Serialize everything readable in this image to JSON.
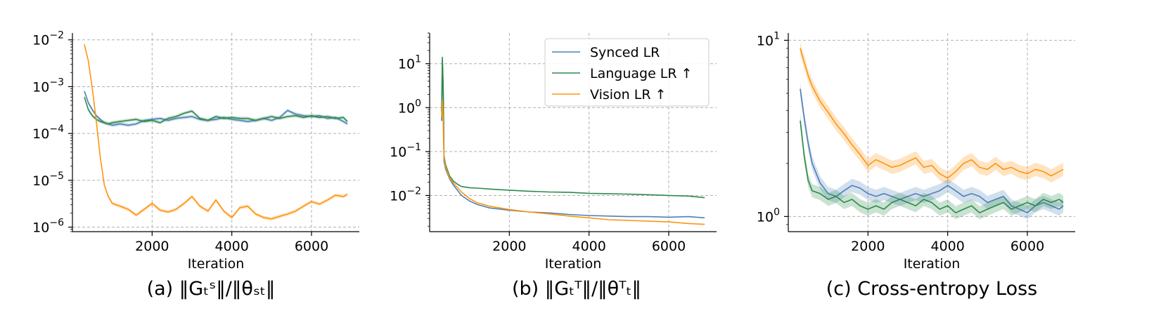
{
  "chart_data": [
    {
      "type": "line",
      "caption": "(a) ‖Gₜˢ‖/‖θₛₜ‖",
      "xlabel": "Iteration",
      "ylabel": "",
      "yscale": "log",
      "xlim": [
        0,
        7200
      ],
      "ylim": [
        8e-07,
        0.014
      ],
      "xticks": [
        2000,
        4000,
        6000
      ],
      "xtick_labels": [
        "2000",
        "4000",
        "6000"
      ],
      "yticks": [
        1e-06,
        1e-05,
        0.0001,
        0.001,
        0.01
      ],
      "ytick_labels": [
        {
          "base": "10",
          "exp": "−6"
        },
        {
          "base": "10",
          "exp": "−5"
        },
        {
          "base": "10",
          "exp": "−4"
        },
        {
          "base": "10",
          "exp": "−3"
        },
        {
          "base": "10",
          "exp": "−2"
        }
      ],
      "grid": true,
      "legend": false,
      "series": [
        {
          "color": "#4c80b8",
          "shaded": true,
          "x": [
            300,
            400,
            500,
            600,
            700,
            800,
            900,
            1000,
            1200,
            1400,
            1600,
            1800,
            2000,
            2200,
            2400,
            2600,
            2800,
            3000,
            3200,
            3400,
            3600,
            3800,
            4000,
            4200,
            4400,
            4600,
            4800,
            5000,
            5200,
            5400,
            5600,
            5800,
            6000,
            6200,
            6400,
            6600,
            6800,
            6900
          ],
          "y": [
            0.0008,
            0.00045,
            0.00032,
            0.00024,
            0.0002,
            0.00017,
            0.00016,
            0.00015,
            0.00016,
            0.00015,
            0.00016,
            0.00019,
            0.0002,
            0.00021,
            0.00019,
            0.00021,
            0.00022,
            0.00023,
            0.0002,
            0.00019,
            0.0002,
            0.00022,
            0.0002,
            0.00019,
            0.00018,
            0.00019,
            0.00021,
            0.00019,
            0.00022,
            0.00031,
            0.00026,
            0.00024,
            0.00023,
            0.00024,
            0.00021,
            0.00022,
            0.00018,
            0.00016
          ]
        },
        {
          "color": "#2c8a4a",
          "shaded": true,
          "x": [
            300,
            400,
            500,
            600,
            700,
            800,
            900,
            1000,
            1200,
            1400,
            1600,
            1800,
            2000,
            2200,
            2400,
            2600,
            2800,
            3000,
            3200,
            3400,
            3600,
            3800,
            4000,
            4200,
            4400,
            4600,
            4800,
            5000,
            5200,
            5400,
            5600,
            5800,
            6000,
            6200,
            6400,
            6600,
            6800,
            6900
          ],
          "y": [
            0.0006,
            0.00032,
            0.00024,
            0.0002,
            0.00018,
            0.00017,
            0.00016,
            0.00017,
            0.00018,
            0.00019,
            0.0002,
            0.00018,
            0.00019,
            0.00017,
            0.00021,
            0.00023,
            0.00027,
            0.0003,
            0.00021,
            0.00019,
            0.00023,
            0.00021,
            0.00022,
            0.00021,
            0.00021,
            0.00019,
            0.00021,
            0.00023,
            0.00021,
            0.00023,
            0.00024,
            0.00022,
            0.00024,
            0.00022,
            0.00023,
            0.00021,
            0.00022,
            0.00018
          ]
        },
        {
          "color": "#ff9410",
          "shaded": true,
          "x": [
            300,
            400,
            500,
            600,
            700,
            800,
            900,
            1000,
            1200,
            1400,
            1600,
            1800,
            2000,
            2200,
            2400,
            2600,
            2800,
            3000,
            3200,
            3400,
            3600,
            3800,
            4000,
            4200,
            4400,
            4600,
            4800,
            5000,
            5200,
            5400,
            5600,
            5800,
            6000,
            6200,
            6400,
            6600,
            6800,
            6900
          ],
          "y": [
            0.008,
            0.0035,
            0.0009,
            0.00018,
            3e-05,
            8e-06,
            4.5e-06,
            3.2e-06,
            2.8e-06,
            2.4e-06,
            1.8e-06,
            2.4e-06,
            3.2e-06,
            2.3e-06,
            2.1e-06,
            2.4e-06,
            3.2e-06,
            4.5e-06,
            2.8e-06,
            2.2e-06,
            3.8e-06,
            2.2e-06,
            1.6e-06,
            2.6e-06,
            2.8e-06,
            1.9e-06,
            1.6e-06,
            1.5e-06,
            1.7e-06,
            1.9e-06,
            2.2e-06,
            2.8e-06,
            3.5e-06,
            3.1e-06,
            3.8e-06,
            4.8e-06,
            4.5e-06,
            5e-06
          ]
        }
      ]
    },
    {
      "type": "line",
      "caption": "(b) ‖Gₜᵀ‖/‖θᵀₜ‖",
      "xlabel": "Iteration",
      "ylabel": "",
      "yscale": "log",
      "xlim": [
        0,
        7200
      ],
      "ylim": [
        0.0015,
        50
      ],
      "xticks": [
        2000,
        4000,
        6000
      ],
      "xtick_labels": [
        "2000",
        "4000",
        "6000"
      ],
      "yticks": [
        0.01,
        0.1,
        1,
        10
      ],
      "ytick_labels": [
        {
          "base": "10",
          "exp": "−2"
        },
        {
          "base": "10",
          "exp": "−1"
        },
        {
          "base": "10",
          "exp": "0"
        },
        {
          "base": "10",
          "exp": "1"
        }
      ],
      "grid": true,
      "legend": true,
      "legend_position": "upper-right",
      "series": [
        {
          "name": "Synced LR",
          "color": "#4c80b8",
          "shaded": false,
          "x": [
            300,
            320,
            340,
            360,
            400,
            500,
            600,
            700,
            800,
            1000,
            1200,
            1500,
            2000,
            2500,
            3000,
            3500,
            4000,
            4500,
            5000,
            5500,
            6000,
            6500,
            6900
          ],
          "y": [
            0.5,
            12,
            2.5,
            0.06,
            0.04,
            0.024,
            0.017,
            0.013,
            0.01,
            0.0075,
            0.0062,
            0.0052,
            0.0046,
            0.0042,
            0.004,
            0.0037,
            0.0035,
            0.0034,
            0.0033,
            0.0033,
            0.0032,
            0.0033,
            0.0031
          ]
        },
        {
          "name": "Language LR ↑",
          "color": "#2c8a4a",
          "shaded": false,
          "x": [
            300,
            320,
            340,
            360,
            400,
            500,
            600,
            700,
            800,
            1000,
            1200,
            1500,
            2000,
            2500,
            3000,
            3500,
            4000,
            4500,
            5000,
            5500,
            6000,
            6500,
            6900
          ],
          "y": [
            0.8,
            14,
            3,
            0.08,
            0.05,
            0.028,
            0.021,
            0.018,
            0.016,
            0.015,
            0.0147,
            0.014,
            0.0132,
            0.0125,
            0.012,
            0.0118,
            0.0112,
            0.011,
            0.0107,
            0.0104,
            0.01,
            0.0097,
            0.0089
          ]
        },
        {
          "name": "Vision LR ↑",
          "color": "#ff9410",
          "shaded": false,
          "x": [
            300,
            320,
            340,
            360,
            400,
            500,
            600,
            700,
            800,
            1000,
            1200,
            1500,
            2000,
            2500,
            3000,
            3500,
            4000,
            4500,
            5000,
            5500,
            6000,
            6500,
            6900
          ],
          "y": [
            0.6,
            1.5,
            0.4,
            0.07,
            0.045,
            0.025,
            0.019,
            0.015,
            0.012,
            0.0085,
            0.0068,
            0.0057,
            0.0048,
            0.0042,
            0.0038,
            0.0034,
            0.0031,
            0.0028,
            0.0027,
            0.0026,
            0.0025,
            0.0023,
            0.0022
          ]
        }
      ]
    },
    {
      "type": "line",
      "caption": "(c) Cross-entropy Loss",
      "xlabel": "Iteration",
      "ylabel": "",
      "yscale": "log",
      "xlim": [
        0,
        7200
      ],
      "ylim": [
        0.82,
        11
      ],
      "xticks": [
        2000,
        4000,
        6000
      ],
      "xtick_labels": [
        "2000",
        "4000",
        "6000"
      ],
      "yticks": [
        1,
        10
      ],
      "ytick_labels": [
        {
          "base": "10",
          "exp": "0"
        },
        {
          "base": "10",
          "exp": "1"
        }
      ],
      "grid": true,
      "legend": false,
      "series": [
        {
          "color": "#ff9410",
          "shaded": true,
          "x": [
            300,
            400,
            500,
            600,
            800,
            1000,
            1200,
            1400,
            1600,
            1800,
            2000,
            2200,
            2400,
            2600,
            2800,
            3000,
            3200,
            3400,
            3600,
            3800,
            4000,
            4200,
            4400,
            4600,
            4800,
            5000,
            5200,
            5400,
            5600,
            5800,
            6000,
            6200,
            6400,
            6600,
            6800,
            6900
          ],
          "y": [
            9.0,
            7.5,
            6.3,
            5.5,
            4.5,
            3.9,
            3.35,
            2.95,
            2.55,
            2.25,
            1.95,
            2.1,
            2.0,
            1.9,
            1.95,
            2.05,
            2.15,
            1.9,
            1.95,
            1.75,
            1.65,
            1.8,
            2.0,
            2.1,
            1.9,
            1.85,
            2.0,
            1.85,
            1.9,
            1.8,
            1.75,
            1.85,
            1.8,
            1.7,
            1.8,
            1.85
          ]
        },
        {
          "color": "#4c80b8",
          "shaded": true,
          "x": [
            300,
            400,
            500,
            600,
            800,
            1000,
            1200,
            1400,
            1600,
            1800,
            2000,
            2200,
            2400,
            2600,
            2800,
            3000,
            3200,
            3400,
            3600,
            3800,
            4000,
            4200,
            4400,
            4600,
            4800,
            5000,
            5200,
            5400,
            5600,
            5800,
            6000,
            6200,
            6400,
            6600,
            6800,
            6900
          ],
          "y": [
            5.3,
            3.6,
            2.6,
            2.0,
            1.55,
            1.35,
            1.3,
            1.4,
            1.5,
            1.45,
            1.35,
            1.3,
            1.35,
            1.3,
            1.25,
            1.3,
            1.35,
            1.3,
            1.35,
            1.4,
            1.5,
            1.4,
            1.3,
            1.35,
            1.3,
            1.2,
            1.25,
            1.3,
            1.15,
            1.1,
            1.05,
            1.15,
            1.2,
            1.15,
            1.1,
            1.15
          ]
        },
        {
          "color": "#2c8a4a",
          "shaded": true,
          "x": [
            300,
            400,
            500,
            600,
            800,
            1000,
            1200,
            1400,
            1600,
            1800,
            2000,
            2200,
            2400,
            2600,
            2800,
            3000,
            3200,
            3400,
            3600,
            3800,
            4000,
            4200,
            4400,
            4600,
            4800,
            5000,
            5200,
            5400,
            5600,
            5800,
            6000,
            6200,
            6400,
            6600,
            6800,
            6900
          ],
          "y": [
            3.5,
            2.2,
            1.6,
            1.4,
            1.35,
            1.25,
            1.3,
            1.2,
            1.25,
            1.15,
            1.1,
            1.15,
            1.1,
            1.2,
            1.25,
            1.2,
            1.15,
            1.25,
            1.2,
            1.1,
            1.15,
            1.05,
            1.1,
            1.15,
            1.05,
            1.1,
            1.15,
            1.2,
            1.1,
            1.15,
            1.2,
            1.15,
            1.25,
            1.2,
            1.25,
            1.2
          ]
        }
      ]
    }
  ]
}
